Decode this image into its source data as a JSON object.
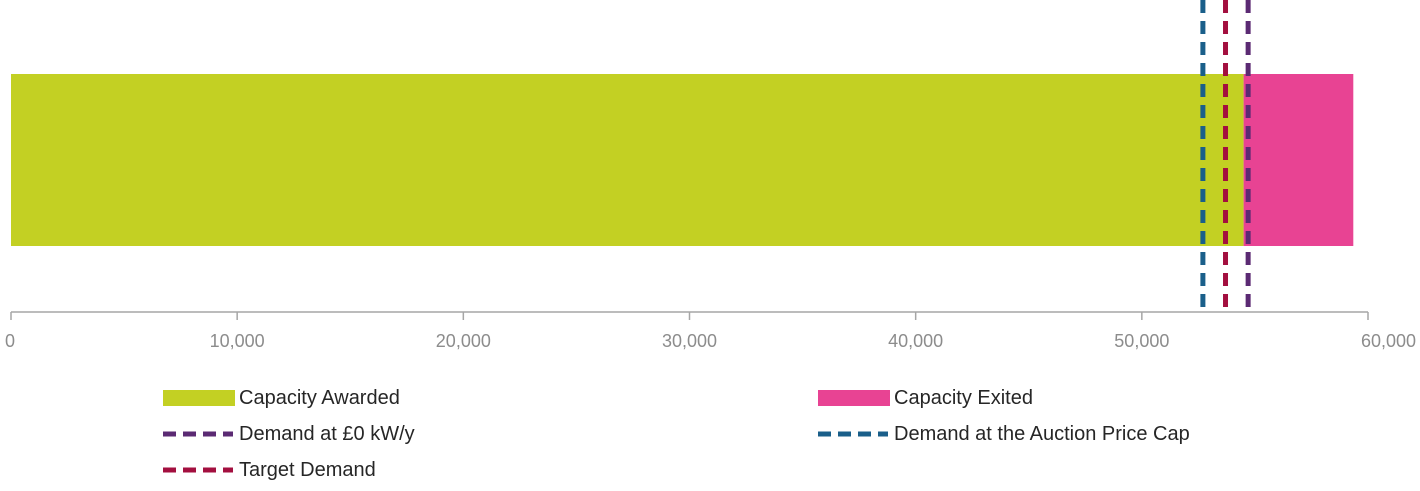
{
  "chart_data": {
    "type": "bar",
    "orientation": "horizontal",
    "stacked": true,
    "xlim": [
      0,
      60000
    ],
    "x_ticks": [
      0,
      10000,
      20000,
      30000,
      40000,
      50000,
      60000
    ],
    "x_tick_labels": [
      "0",
      "10,000",
      "20,000",
      "30,000",
      "40,000",
      "50,000",
      "60,000"
    ],
    "grid": false,
    "legend_position": "bottom",
    "series": [
      {
        "name": "Capacity Awarded",
        "value": 54500,
        "color": "#c3d023"
      },
      {
        "name": "Capacity Exited",
        "value": 4850,
        "color": "#e84393"
      }
    ],
    "reference_lines": [
      {
        "name": "Demand at £0 kW/y",
        "value": 54700,
        "color": "#5b2a73",
        "style": "dashed"
      },
      {
        "name": "Demand at the Auction Price Cap",
        "value": 52700,
        "color": "#1a5f8a",
        "style": "dashed"
      },
      {
        "name": "Target Demand",
        "value": 53700,
        "color": "#a30f3f",
        "style": "dashed"
      }
    ]
  },
  "legend": {
    "capacity_awarded": "Capacity Awarded",
    "capacity_exited": "Capacity Exited",
    "demand_zero": "Demand at £0 kW/y",
    "demand_cap": "Demand at the Auction Price Cap",
    "target_demand": "Target Demand"
  }
}
